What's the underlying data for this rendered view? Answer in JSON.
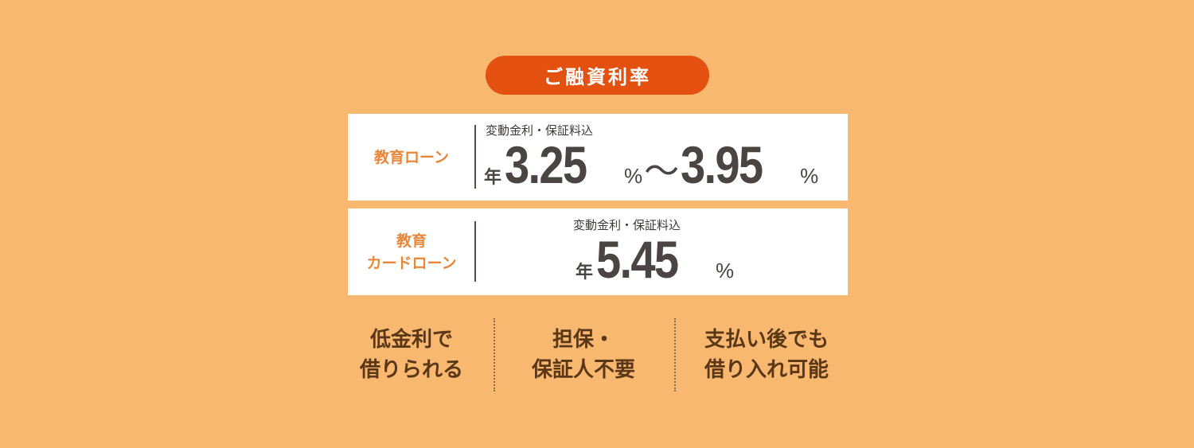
{
  "header": {
    "title": "ご融資利率"
  },
  "loans": [
    {
      "name": "教育ローン",
      "note": "変動金利・保証料込",
      "prefix": "年",
      "rate_min": "3.25",
      "rate_max": "3.95",
      "unit": "%",
      "sep": "〜"
    },
    {
      "name_line1": "教育",
      "name_line2": "カードローン",
      "note": "変動金利・保証料込",
      "prefix": "年",
      "rate": "5.45",
      "unit": "%"
    }
  ],
  "features": [
    {
      "line1": "低金利で",
      "line2": "借りられる"
    },
    {
      "line1": "担保・",
      "line2": "保証人不要"
    },
    {
      "line1": "支払い後でも",
      "line2": "借り入れ可能"
    }
  ],
  "colors": {
    "background": "#F8B870",
    "pill": "#E4500F",
    "label": "#E8863A",
    "text": "#4A4443",
    "feature": "#5A3716"
  }
}
